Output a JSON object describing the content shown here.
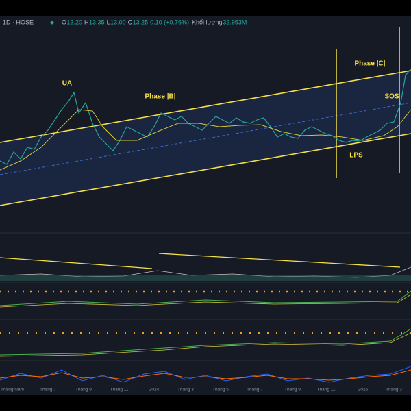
{
  "header": {
    "symbol": "1D · HOSE",
    "ohlc": [
      {
        "label": "O",
        "value": "13.20"
      },
      {
        "label": "H",
        "value": "13.35"
      },
      {
        "label": "L",
        "value": "13.00"
      },
      {
        "label": "C",
        "value": "13.25"
      }
    ],
    "change": "0.10 (+0.76%)",
    "volume_label": "Khối lượng",
    "volume": "32.953M"
  },
  "annotations": [
    "UA",
    "Phase |B|",
    "Phase |C|",
    "SOS",
    "LPS"
  ],
  "x_axis": [
    "Tháng Năm",
    "Tháng 7",
    "Tháng 9",
    "Tháng 11",
    "2024",
    "Tháng 3",
    "Tháng 5",
    "Tháng 7",
    "Tháng 9",
    "Tháng 11",
    "2025",
    "Tháng 3"
  ]
}
